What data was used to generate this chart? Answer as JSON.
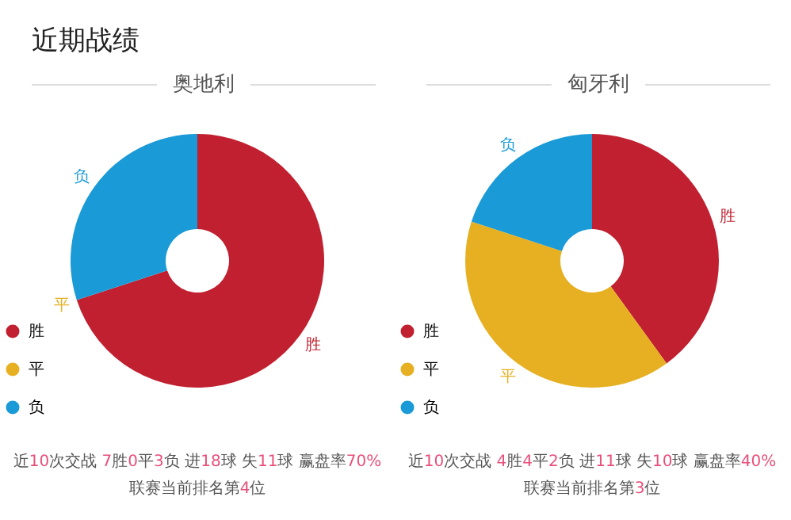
{
  "chart_data": [
    {
      "type": "donut",
      "title": "奥地利",
      "categories": [
        "胜",
        "平",
        "负"
      ],
      "values": [
        70,
        0,
        30
      ],
      "colors": [
        "#c0202f",
        "#e6b022",
        "#1a9ad6"
      ],
      "legend": "bottom left",
      "annotations": [
        "近期战绩",
        "近10次交战 7胜0平3负 进18球 失11球 赢盘率70%",
        "联赛当前排名第4位"
      ]
    },
    {
      "type": "donut",
      "title": "匈牙利",
      "categories": [
        "胜",
        "平",
        "负"
      ],
      "values": [
        40,
        40,
        20
      ],
      "colors": [
        "#c0202f",
        "#e6b022",
        "#1a9ad6"
      ],
      "legend": "bottom left",
      "annotations": [
        "近10次交战 4胜4平2负 进11球 失10球 赢盘率40%",
        "联赛当前排名第3位"
      ]
    }
  ]
}
